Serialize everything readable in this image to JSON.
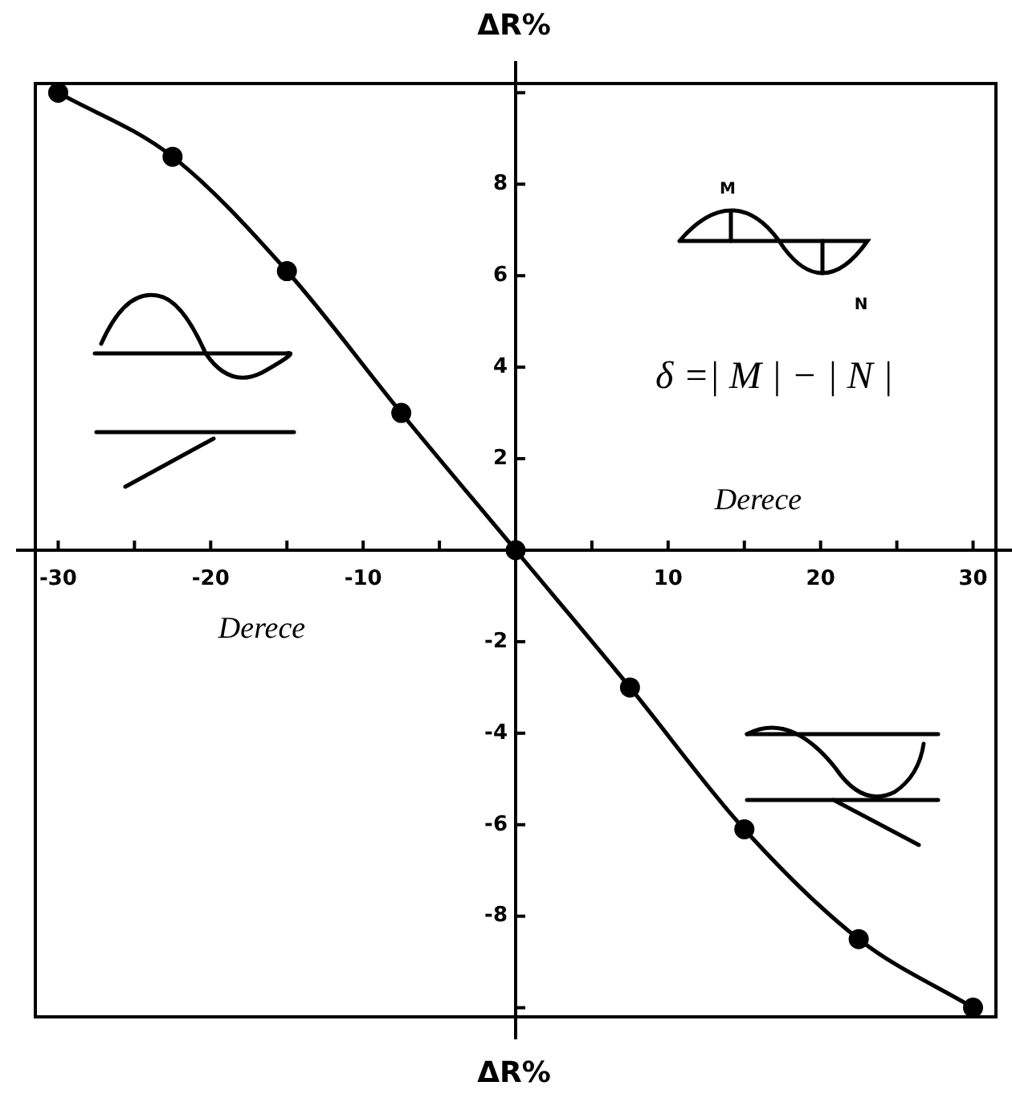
{
  "chart_data": {
    "type": "line",
    "xlabel": "Derece",
    "ylabel": "ΔR%",
    "annotations": [
      "ΔR%",
      "Derece",
      "δ =| M | − | N |",
      "M",
      "N"
    ],
    "x": [
      -30,
      -22.5,
      -15,
      -7.5,
      0,
      7.5,
      15,
      22.5,
      30
    ],
    "series": [
      {
        "color": "#000000",
        "values": [
          10,
          8.6,
          6.1,
          3.0,
          0,
          -3.0,
          -6.1,
          -8.5,
          -10
        ]
      }
    ],
    "xlim": [
      -31.5,
      31.5
    ],
    "ylim": [
      -10.2,
      10.2
    ],
    "xticks": [
      -30,
      {
        "value": -25,
        "label": null
      },
      -20,
      {
        "value": -15,
        "label": null
      },
      -10,
      {
        "value": -5,
        "label": null
      },
      {
        "value": 5,
        "label": null
      },
      10,
      {
        "value": 15,
        "label": null
      },
      20,
      {
        "value": 25,
        "label": null
      },
      30
    ],
    "yticks": [
      {
        "value": -10,
        "label": null
      },
      -8,
      -6,
      -4,
      -2,
      2,
      4,
      6,
      8,
      {
        "value": 10,
        "label": null
      }
    ],
    "legend": false,
    "marker": "circle",
    "line_style": "solid"
  }
}
